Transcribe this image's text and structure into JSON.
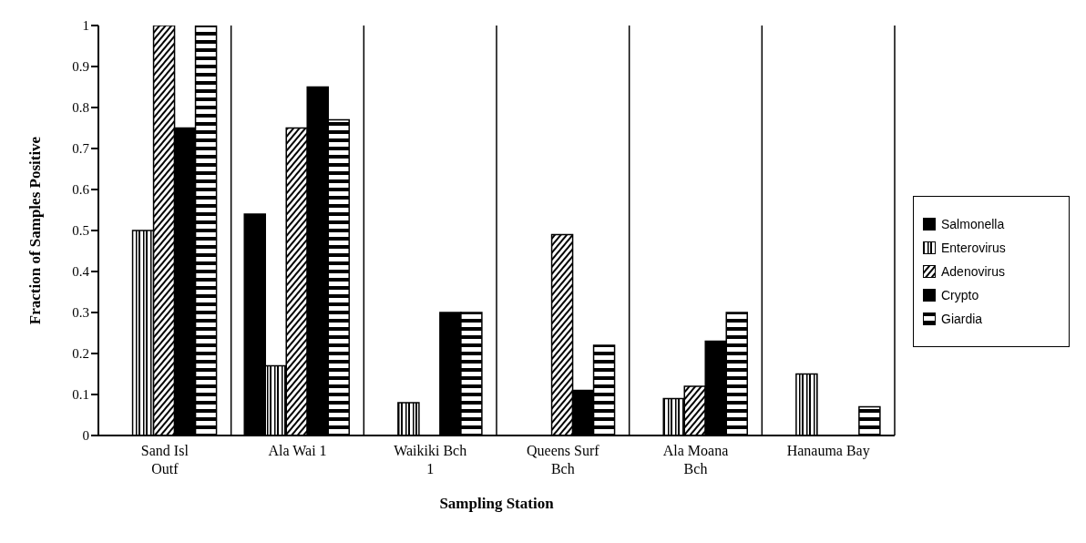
{
  "chart_data": {
    "type": "bar",
    "xlabel": "Sampling Station",
    "ylabel": "Fraction of Samples Positive",
    "categories": [
      "Sand Isl Outf",
      "Ala Wai 1",
      "Waikiki Bch 1",
      "Queens Surf Bch",
      "Ala Moana Bch",
      "Hanauma Bay"
    ],
    "series": [
      {
        "name": "Salmonella",
        "color": "#000000",
        "values": [
          0,
          0.54,
          0,
          0,
          0,
          0
        ]
      },
      {
        "name": "Enterovirus",
        "color": "#000000",
        "values": [
          0.5,
          0.17,
          0.08,
          0,
          0.09,
          0.15
        ]
      },
      {
        "name": "Adenovirus",
        "color": "#000000",
        "values": [
          1,
          0.75,
          0,
          0.49,
          0.12,
          0
        ]
      },
      {
        "name": "Crypto",
        "color": "#000000",
        "values": [
          0.75,
          0.85,
          0.3,
          0.11,
          0.23,
          0
        ]
      },
      {
        "name": "Giardia",
        "color": "#000000",
        "values": [
          1,
          0.77,
          0.3,
          0.22,
          0.3,
          0.07
        ]
      }
    ],
    "ylim": [
      0,
      1
    ],
    "yticks": [
      0,
      0.1,
      0.2,
      0.3,
      0.4,
      0.5,
      0.6,
      0.7,
      0.8,
      0.9,
      1
    ],
    "grid": "x",
    "legend": "right"
  }
}
